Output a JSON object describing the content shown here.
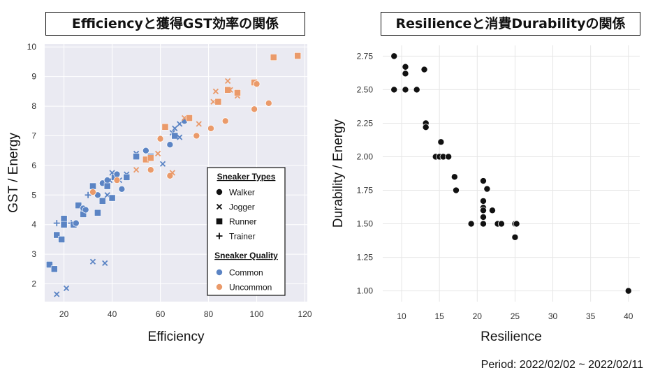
{
  "page": {
    "period": "Period: 2022/02/02 ~ 2022/02/11"
  },
  "colors": {
    "common": "#5b84c4",
    "uncommon": "#ea9a6a",
    "black": "#111111",
    "panel_bg": "#eaeaf2"
  },
  "chart_data": [
    {
      "type": "scatter",
      "title": "Efficiencyと獲得GST効率の関係",
      "xlabel": "Efficiency",
      "ylabel": "GST / Energy",
      "xlim": [
        12,
        121
      ],
      "ylim": [
        1.4,
        10.1
      ],
      "xticks": [
        20,
        40,
        60,
        80,
        100,
        120
      ],
      "yticks": [
        2,
        3,
        4,
        5,
        6,
        7,
        8,
        9,
        10
      ],
      "grid": true,
      "legend_position": "lower-right",
      "legend": {
        "type_title": "Sneaker Types",
        "types": [
          {
            "name": "Walker",
            "marker": "circle"
          },
          {
            "name": "Jogger",
            "marker": "x"
          },
          {
            "name": "Runner",
            "marker": "square"
          },
          {
            "name": "Trainer",
            "marker": "plus"
          }
        ],
        "quality_title": "Sneaker Quality",
        "qualities": [
          {
            "name": "Common",
            "color": "#5b84c4"
          },
          {
            "name": "Uncommon",
            "color": "#ea9a6a"
          }
        ]
      },
      "series": [
        {
          "name": "Common",
          "points": [
            [
              14,
              2.65,
              "s"
            ],
            [
              16,
              2.5,
              "s"
            ],
            [
              17,
              1.65,
              "x"
            ],
            [
              17,
              4.05,
              "+"
            ],
            [
              17,
              3.65,
              "s"
            ],
            [
              19,
              3.5,
              "s"
            ],
            [
              20,
              4.2,
              "s"
            ],
            [
              20,
              4.0,
              "s"
            ],
            [
              21,
              1.85,
              "x"
            ],
            [
              23,
              4.05,
              "+"
            ],
            [
              24,
              4.0,
              "s"
            ],
            [
              25,
              4.05,
              "o"
            ],
            [
              26,
              4.65,
              "s"
            ],
            [
              28,
              4.45,
              "s"
            ],
            [
              28,
              4.35,
              "s"
            ],
            [
              28,
              4.55,
              "o"
            ],
            [
              29,
              4.5,
              "o"
            ],
            [
              30,
              5.0,
              "+"
            ],
            [
              32,
              5.3,
              "s"
            ],
            [
              32,
              2.75,
              "x"
            ],
            [
              32,
              5.2,
              "x"
            ],
            [
              34,
              4.4,
              "s"
            ],
            [
              34,
              5.0,
              "o"
            ],
            [
              36,
              5.4,
              "o"
            ],
            [
              36,
              4.8,
              "s"
            ],
            [
              37,
              2.7,
              "x"
            ],
            [
              38,
              5.0,
              "x"
            ],
            [
              38,
              5.5,
              "o"
            ],
            [
              38,
              5.3,
              "s"
            ],
            [
              39,
              5.5,
              "x"
            ],
            [
              40,
              5.75,
              "x"
            ],
            [
              40,
              4.9,
              "s"
            ],
            [
              41,
              5.6,
              "s"
            ],
            [
              42,
              5.7,
              "o"
            ],
            [
              43,
              5.5,
              "x"
            ],
            [
              44,
              5.2,
              "o"
            ],
            [
              46,
              5.7,
              "x"
            ],
            [
              46,
              5.6,
              "s"
            ],
            [
              50,
              6.4,
              "x"
            ],
            [
              50,
              6.3,
              "s"
            ],
            [
              54,
              6.5,
              "o"
            ],
            [
              56,
              6.3,
              "s"
            ],
            [
              61,
              6.05,
              "x"
            ],
            [
              64,
              6.7,
              "o"
            ],
            [
              65,
              7.1,
              "x"
            ],
            [
              66,
              7.25,
              "x"
            ],
            [
              66,
              7.0,
              "s"
            ],
            [
              68,
              7.4,
              "x"
            ],
            [
              68,
              6.95,
              "x"
            ],
            [
              70,
              7.5,
              "o"
            ]
          ]
        },
        {
          "name": "Uncommon",
          "points": [
            [
              32,
              5.1,
              "o"
            ],
            [
              42,
              5.5,
              "o"
            ],
            [
              50,
              5.85,
              "x"
            ],
            [
              54,
              6.2,
              "s"
            ],
            [
              56,
              5.85,
              "o"
            ],
            [
              56,
              6.25,
              "s"
            ],
            [
              59,
              6.4,
              "x"
            ],
            [
              60,
              6.9,
              "o"
            ],
            [
              62,
              7.3,
              "s"
            ],
            [
              64,
              5.65,
              "o"
            ],
            [
              65,
              5.75,
              "x"
            ],
            [
              70,
              7.6,
              "x"
            ],
            [
              72,
              7.6,
              "s"
            ],
            [
              75,
              7.0,
              "o"
            ],
            [
              76,
              7.4,
              "x"
            ],
            [
              81,
              7.25,
              "o"
            ],
            [
              82,
              8.15,
              "x"
            ],
            [
              83,
              8.5,
              "x"
            ],
            [
              84,
              8.15,
              "s"
            ],
            [
              87,
              7.5,
              "o"
            ],
            [
              88,
              8.55,
              "s"
            ],
            [
              88,
              8.85,
              "x"
            ],
            [
              89,
              8.55,
              "x"
            ],
            [
              92,
              8.35,
              "x"
            ],
            [
              92,
              8.45,
              "s"
            ],
            [
              99,
              7.9,
              "o"
            ],
            [
              99,
              8.8,
              "s"
            ],
            [
              100,
              8.75,
              "o"
            ],
            [
              105,
              8.1,
              "o"
            ],
            [
              107,
              9.65,
              "s"
            ],
            [
              117,
              9.7,
              "s"
            ]
          ]
        }
      ]
    },
    {
      "type": "scatter",
      "title": "Resilienceと消費Durabilityの関係",
      "xlabel": "Resilience",
      "ylabel": "Durability / Energy",
      "xlim": [
        7.5,
        41.5
      ],
      "ylim": [
        0.92,
        2.83
      ],
      "xticks": [
        10,
        15,
        20,
        25,
        30,
        35,
        40
      ],
      "yticks": [
        "1.00",
        "1.25",
        "1.50",
        "1.75",
        "2.00",
        "2.25",
        "2.50",
        "2.75"
      ],
      "grid": true,
      "series": [
        {
          "name": "",
          "points": [
            [
              9,
              2.75
            ],
            [
              9,
              2.5
            ],
            [
              10.5,
              2.67
            ],
            [
              10.5,
              2.62
            ],
            [
              10.5,
              2.5
            ],
            [
              12,
              2.5
            ],
            [
              13,
              2.65
            ],
            [
              13.2,
              2.25
            ],
            [
              13.2,
              2.22
            ],
            [
              14.5,
              2.0
            ],
            [
              15,
              2.0
            ],
            [
              15.2,
              2.11
            ],
            [
              15.5,
              2.0
            ],
            [
              16.2,
              2.0
            ],
            [
              17,
              1.85
            ],
            [
              17.2,
              1.75
            ],
            [
              19.2,
              1.5
            ],
            [
              20.8,
              1.82
            ],
            [
              20.8,
              1.67
            ],
            [
              20.8,
              1.62
            ],
            [
              20.8,
              1.6
            ],
            [
              20.8,
              1.55
            ],
            [
              20.8,
              1.5
            ],
            [
              21.3,
              1.76
            ],
            [
              22,
              1.6
            ],
            [
              22.7,
              1.5
            ],
            [
              23.2,
              1.5
            ],
            [
              25,
              1.5
            ],
            [
              25.2,
              1.5
            ],
            [
              25,
              1.4
            ],
            [
              40,
              1.0
            ]
          ]
        }
      ]
    }
  ]
}
